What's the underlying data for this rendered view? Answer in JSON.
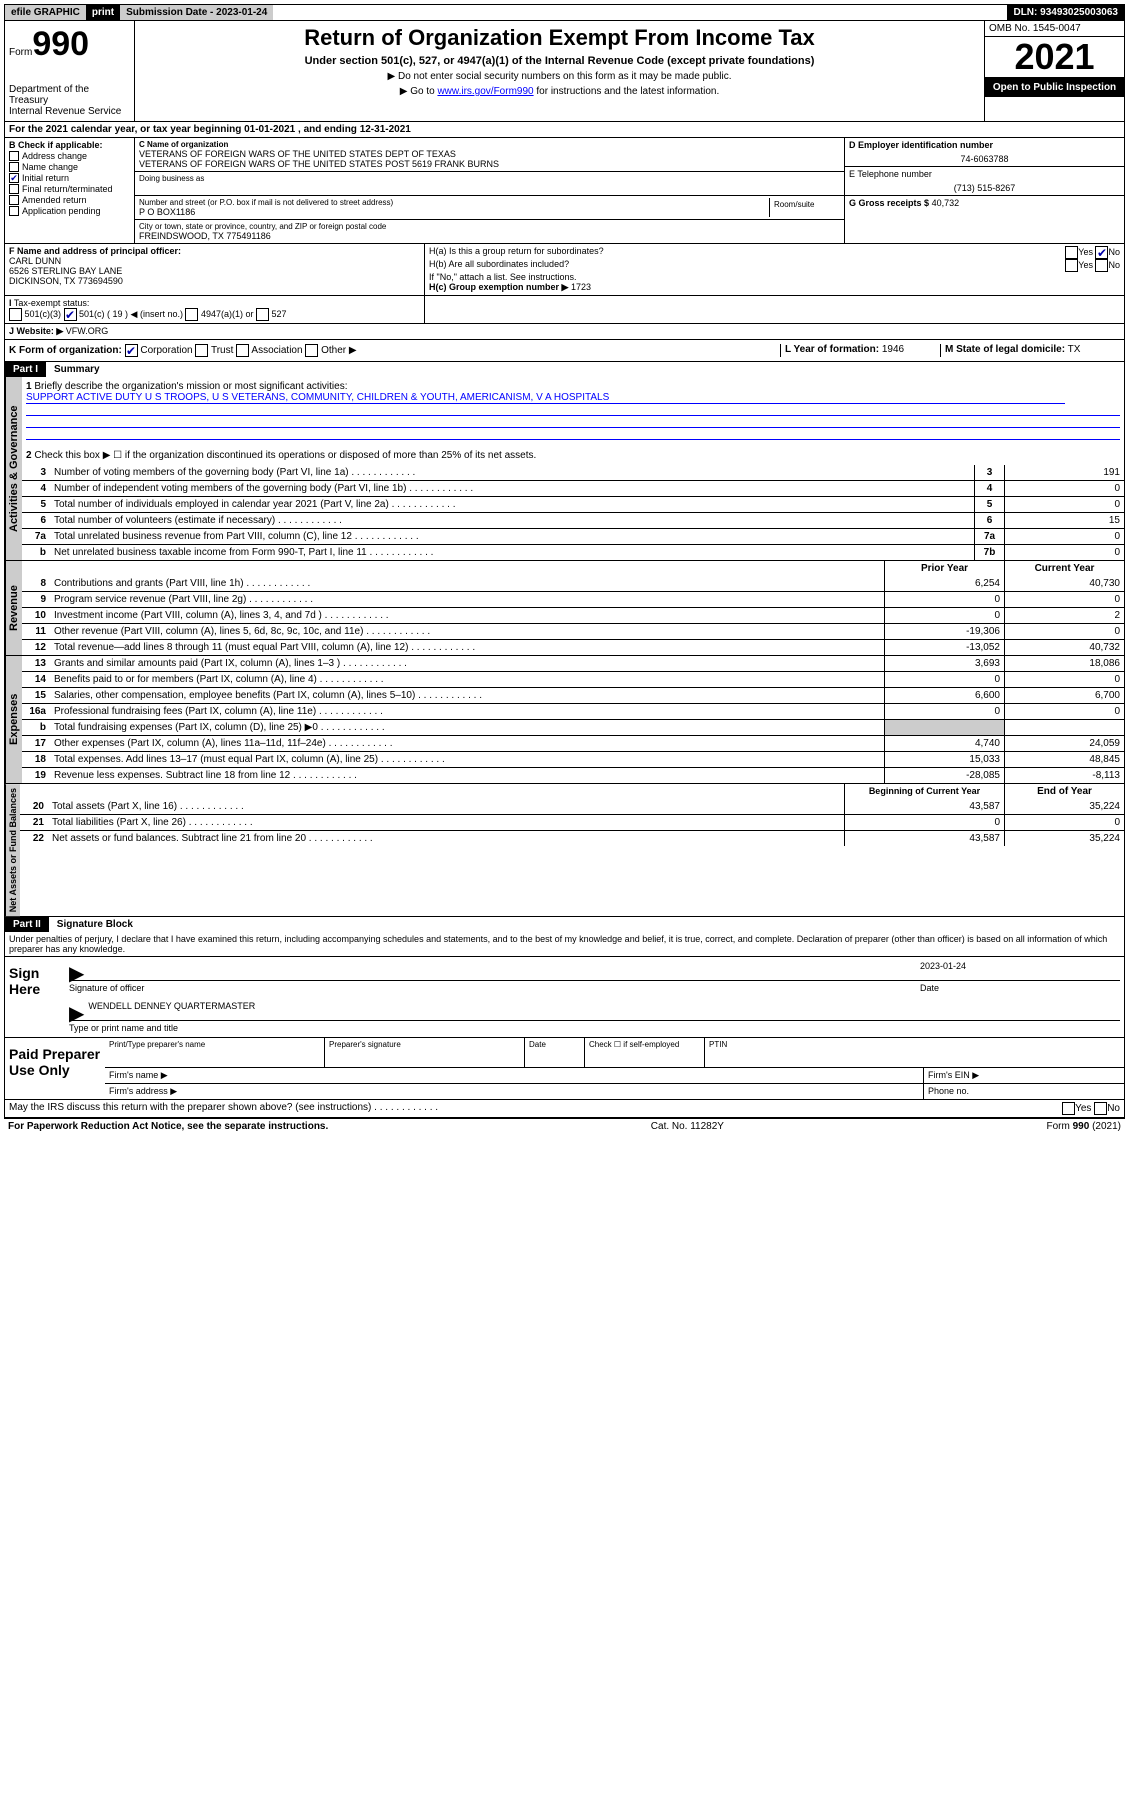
{
  "topbar": {
    "efile": "efile GRAPHIC",
    "print": "print",
    "sub_label": "Submission Date - 2023-01-24",
    "dln": "DLN: 93493025003063"
  },
  "header": {
    "form_prefix": "Form",
    "form_num": "990",
    "dept": "Department of the Treasury\nInternal Revenue Service",
    "title": "Return of Organization Exempt From Income Tax",
    "subtitle": "Under section 501(c), 527, or 4947(a)(1) of the Internal Revenue Code (except private foundations)",
    "note1": "▶ Do not enter social security numbers on this form as it may be made public.",
    "note2_pre": "▶ Go to ",
    "note2_link": "www.irs.gov/Form990",
    "note2_post": " for instructions and the latest information.",
    "omb": "OMB No. 1545-0047",
    "year": "2021",
    "open": "Open to Public Inspection"
  },
  "tax_year_line": "For the 2021 calendar year, or tax year beginning 01-01-2021   , and ending 12-31-2021",
  "box_b": {
    "label": "B Check if applicable:",
    "items": [
      "Address change",
      "Name change",
      "Initial return",
      "Final return/terminated",
      "Amended return",
      "Application pending"
    ],
    "checked_idx": 2
  },
  "box_c": {
    "name_label": "C Name of organization",
    "name1": "VETERANS OF FOREIGN WARS OF THE UNITED STATES DEPT OF TEXAS",
    "name2": "VETERANS OF FOREIGN WARS OF THE UNITED STATES POST 5619 FRANK BURNS",
    "dba_label": "Doing business as",
    "addr_label": "Number and street (or P.O. box if mail is not delivered to street address)",
    "room_label": "Room/suite",
    "addr": "P O BOX1186",
    "city_label": "City or town, state or province, country, and ZIP or foreign postal code",
    "city": "FREINDSWOOD, TX  775491186"
  },
  "box_d": {
    "ein_label": "D Employer identification number",
    "ein": "74-6063788",
    "tel_label": "E Telephone number",
    "tel": "(713) 515-8267",
    "gross_label": "G Gross receipts $",
    "gross": "40,732"
  },
  "box_f": {
    "label": "F Name and address of principal officer:",
    "name": "CARL DUNN",
    "addr": "6526 STERLING BAY LANE",
    "city": "DICKINSON, TX  773694590"
  },
  "box_h": {
    "ha_label": "H(a)  Is this a group return for subordinates?",
    "hb_label": "H(b)  Are all subordinates included?",
    "hb_note": "If \"No,\" attach a list. See instructions.",
    "hc_label": "H(c)  Group exemption number ▶",
    "hc_val": "1723",
    "yes": "Yes",
    "no": "No"
  },
  "box_i": {
    "label": "Tax-exempt status:",
    "opts": [
      "501(c)(3)",
      "501(c) ( 19 ) ◀ (insert no.)",
      "4947(a)(1) or",
      "527"
    ],
    "checked_idx": 1
  },
  "box_j": {
    "label": "J   Website: ▶",
    "val": "VFW.ORG"
  },
  "box_k": {
    "label": "K Form of organization:",
    "opts": [
      "Corporation",
      "Trust",
      "Association",
      "Other ▶"
    ],
    "checked_idx": 0,
    "l_label": "L Year of formation:",
    "l_val": "1946",
    "m_label": "M State of legal domicile:",
    "m_val": "TX"
  },
  "part1": {
    "num": "Part I",
    "title": "Summary",
    "brief_num": "1",
    "brief_label": "Briefly describe the organization's mission or most significant activities:",
    "brief_text": "SUPPORT ACTIVE DUTY U S TROOPS, U S VETERANS, COMMUNITY, CHILDREN & YOUTH, AMERICANISM, V A HOSPITALS",
    "line2": "Check this box ▶ ☐  if the organization discontinued its operations or disposed of more than 25% of its net assets.",
    "sections": {
      "gov": "Activities & Governance",
      "rev": "Revenue",
      "exp": "Expenses",
      "net": "Net Assets or Fund Balances"
    },
    "gov_lines": [
      {
        "n": "3",
        "d": "Number of voting members of the governing body (Part VI, line 1a)",
        "box": "3",
        "v": "191"
      },
      {
        "n": "4",
        "d": "Number of independent voting members of the governing body (Part VI, line 1b)",
        "box": "4",
        "v": "0"
      },
      {
        "n": "5",
        "d": "Total number of individuals employed in calendar year 2021 (Part V, line 2a)",
        "box": "5",
        "v": "0"
      },
      {
        "n": "6",
        "d": "Total number of volunteers (estimate if necessary)",
        "box": "6",
        "v": "15"
      },
      {
        "n": "7a",
        "d": "Total unrelated business revenue from Part VIII, column (C), line 12",
        "box": "7a",
        "v": "0"
      },
      {
        "n": "b",
        "d": "Net unrelated business taxable income from Form 990-T, Part I, line 11",
        "box": "7b",
        "v": "0"
      }
    ],
    "col_hdr": {
      "prior": "Prior Year",
      "current": "Current Year"
    },
    "rev_lines": [
      {
        "n": "8",
        "d": "Contributions and grants (Part VIII, line 1h)",
        "p": "6,254",
        "c": "40,730"
      },
      {
        "n": "9",
        "d": "Program service revenue (Part VIII, line 2g)",
        "p": "0",
        "c": "0"
      },
      {
        "n": "10",
        "d": "Investment income (Part VIII, column (A), lines 3, 4, and 7d )",
        "p": "0",
        "c": "2"
      },
      {
        "n": "11",
        "d": "Other revenue (Part VIII, column (A), lines 5, 6d, 8c, 9c, 10c, and 11e)",
        "p": "-19,306",
        "c": "0"
      },
      {
        "n": "12",
        "d": "Total revenue—add lines 8 through 11 (must equal Part VIII, column (A), line 12)",
        "p": "-13,052",
        "c": "40,732"
      }
    ],
    "exp_lines": [
      {
        "n": "13",
        "d": "Grants and similar amounts paid (Part IX, column (A), lines 1–3 )",
        "p": "3,693",
        "c": "18,086"
      },
      {
        "n": "14",
        "d": "Benefits paid to or for members (Part IX, column (A), line 4)",
        "p": "0",
        "c": "0"
      },
      {
        "n": "15",
        "d": "Salaries, other compensation, employee benefits (Part IX, column (A), lines 5–10)",
        "p": "6,600",
        "c": "6,700"
      },
      {
        "n": "16a",
        "d": "Professional fundraising fees (Part IX, column (A), line 11e)",
        "p": "0",
        "c": "0"
      },
      {
        "n": "b",
        "d": "Total fundraising expenses (Part IX, column (D), line 25) ▶0",
        "p": "",
        "c": "",
        "gray": true
      },
      {
        "n": "17",
        "d": "Other expenses (Part IX, column (A), lines 11a–11d, 11f–24e)",
        "p": "4,740",
        "c": "24,059"
      },
      {
        "n": "18",
        "d": "Total expenses. Add lines 13–17 (must equal Part IX, column (A), line 25)",
        "p": "15,033",
        "c": "48,845"
      },
      {
        "n": "19",
        "d": "Revenue less expenses. Subtract line 18 from line 12",
        "p": "-28,085",
        "c": "-8,113"
      }
    ],
    "net_hdr": {
      "beg": "Beginning of Current Year",
      "end": "End of Year"
    },
    "net_lines": [
      {
        "n": "20",
        "d": "Total assets (Part X, line 16)",
        "p": "43,587",
        "c": "35,224"
      },
      {
        "n": "21",
        "d": "Total liabilities (Part X, line 26)",
        "p": "0",
        "c": "0"
      },
      {
        "n": "22",
        "d": "Net assets or fund balances. Subtract line 21 from line 20",
        "p": "43,587",
        "c": "35,224"
      }
    ]
  },
  "part2": {
    "num": "Part II",
    "title": "Signature Block",
    "penalties": "Under penalties of perjury, I declare that I have examined this return, including accompanying schedules and statements, and to the best of my knowledge and belief, it is true, correct, and complete. Declaration of preparer (other than officer) is based on all information of which preparer has any knowledge.",
    "sign_here": "Sign Here",
    "sig_officer": "Signature of officer",
    "sig_date_label": "Date",
    "sig_date": "2023-01-24",
    "officer_name": "WENDELL DENNEY QUARTERMASTER",
    "type_name": "Type or print name and title",
    "paid": "Paid Preparer Use Only",
    "prep_hdrs": [
      "Print/Type preparer's name",
      "Preparer's signature",
      "Date",
      "Check ☐ if self-employed",
      "PTIN"
    ],
    "firm_name_label": "Firm's name    ▶",
    "firm_ein_label": "Firm's EIN ▶",
    "firm_addr_label": "Firm's address ▶",
    "phone_label": "Phone no.",
    "discuss": "May the IRS discuss this return with the preparer shown above? (see instructions)",
    "discuss_yes": "Yes",
    "discuss_no": "No"
  },
  "footer": {
    "left": "For Paperwork Reduction Act Notice, see the separate instructions.",
    "mid": "Cat. No. 11282Y",
    "right": "Form 990 (2021)"
  }
}
